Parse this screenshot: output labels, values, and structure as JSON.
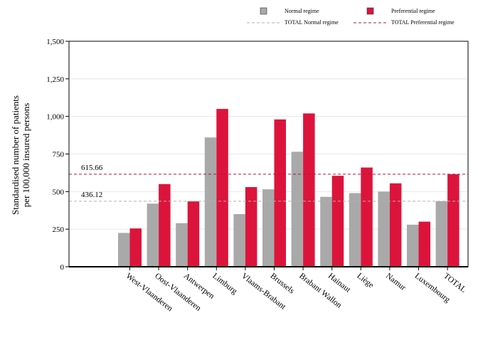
{
  "chart_data": {
    "type": "bar",
    "title": "",
    "xlabel": "",
    "ylabel_lines": [
      "Standardised number of patients",
      "per 100,000 insured persons"
    ],
    "ylim": [
      0,
      1500
    ],
    "yticks": [
      0,
      250,
      500,
      750,
      1000,
      1250,
      1500
    ],
    "ytick_labels": [
      "0",
      "250",
      "500",
      "750",
      "1,000",
      "1,250",
      "1,500"
    ],
    "grid": true,
    "legend_position": "top-right",
    "categories": [
      "West-Vlaanderen",
      "Oost-Vlaanderen",
      "Antwerpen",
      "Limburg",
      "Vlaams-Brabant",
      "Brussels",
      "Brabant Wallon",
      "Hainaut",
      "Liège",
      "Namur",
      "Luxembourg",
      "TOTAL"
    ],
    "series": [
      {
        "name": "Normal regime",
        "color": "#a9a9a9",
        "values": [
          225,
          420,
          290,
          860,
          350,
          515,
          765,
          465,
          490,
          500,
          280,
          436.12
        ]
      },
      {
        "name": "Preferential regime",
        "color": "#dc143c",
        "values": [
          255,
          550,
          435,
          1050,
          530,
          980,
          1020,
          605,
          660,
          555,
          300,
          615.66
        ]
      }
    ],
    "reference_lines": [
      {
        "name": "TOTAL Normal regime",
        "value": 436.12,
        "label": "436.12",
        "color": "#b0b0b0",
        "style": "dashed"
      },
      {
        "name": "TOTAL Preferential regime",
        "value": 615.66,
        "label": "615.66",
        "color": "#b4143c",
        "style": "dashed"
      }
    ]
  }
}
